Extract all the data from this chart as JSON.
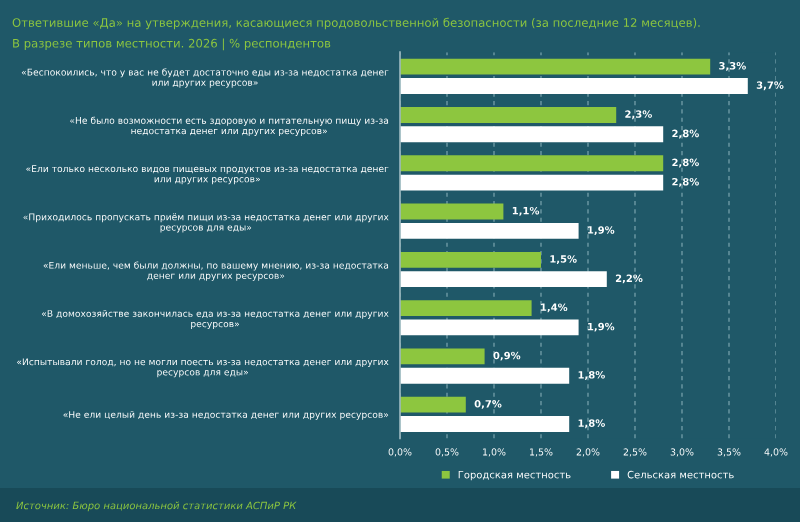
{
  "chart_data": {
    "type": "bar",
    "orientation": "horizontal",
    "title": "Ответившие «Да» на утверждения, касающиеся продовольственной безопасности (за последние 12 месяцев).",
    "subtitle": "В разрезе типов местности. 2026 | % респондентов",
    "categories": [
      "«Беспокоились, что у вас не будет достаточно еды из-за недостатка денег\nили других ресурсов»",
      "«Не было возможности есть здоровую и питательную пищу из-за\nнедостатка денег или других ресурсов»",
      "«Ели только несколько видов пищевых продуктов из-за недостатка денег\nили других ресурсов»",
      "«Приходилось пропускать приём пищи из-за недостатка денег или других\nресурсов для еды»",
      "«Ели меньше, чем были должны, по вашему мнению, из-за недостатка\nденег или других ресурсов»",
      "«В домохозяйстве закончилась еда из-за недостатка денег или других\nресурсов»",
      "«Испытывали голод, но не могли поесть из-за недостатка денег или других\nресурсов для еды»",
      "«Не ели целый день из-за недостатка денег или других ресурсов»"
    ],
    "series": [
      {
        "name": "Городская местность",
        "color": "#8dc63f",
        "values": [
          3.3,
          2.3,
          2.8,
          1.1,
          1.5,
          1.4,
          0.9,
          0.7
        ],
        "value_labels": [
          "3,3%",
          "2,3%",
          "2,8%",
          "1,1%",
          "1,5%",
          "1,4%",
          "0,9%",
          "0,7%"
        ]
      },
      {
        "name": "Сельская местность",
        "color": "#ffffff",
        "values": [
          3.7,
          2.8,
          2.8,
          1.9,
          2.2,
          1.9,
          1.8,
          1.8
        ],
        "value_labels": [
          "3,7%",
          "2,8%",
          "2,8%",
          "1,9%",
          "2,2%",
          "1,9%",
          "1,8%",
          "1,8%"
        ]
      }
    ],
    "xlim": [
      0,
      4.0
    ],
    "xticks": [
      {
        "value": 0,
        "label": "0,0%"
      },
      {
        "value": 0.5,
        "label": "0,5%"
      },
      {
        "value": 1.0,
        "label": "1,0%"
      },
      {
        "value": 1.5,
        "label": "1,5%"
      },
      {
        "value": 2.0,
        "label": "2,0%"
      },
      {
        "value": 2.5,
        "label": "2,5%"
      },
      {
        "value": 3.0,
        "label": "3,0%"
      },
      {
        "value": 3.5,
        "label": "3,5%"
      },
      {
        "value": 4.0,
        "label": "4,0%"
      }
    ],
    "grid": "x",
    "legend": "bottom",
    "annotations": [
      "Источник: Бюро национальной статистики АСПиР РК"
    ]
  }
}
